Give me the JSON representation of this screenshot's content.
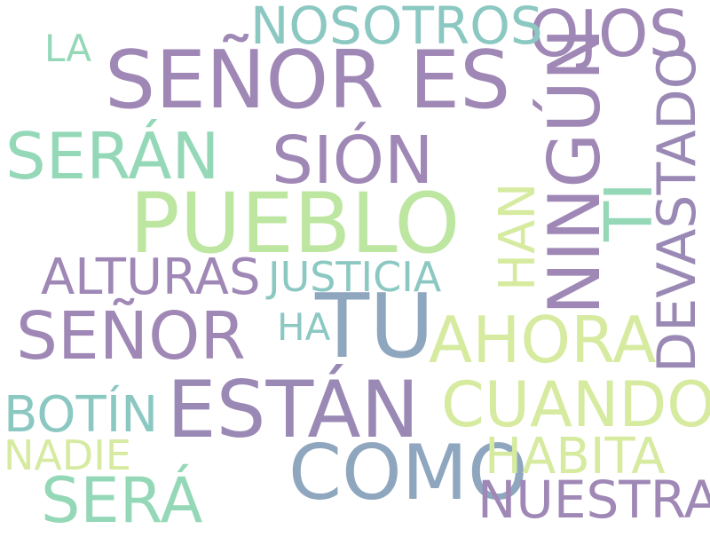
{
  "colors": {
    "purple": "#a088b6",
    "mauve": "#9a89b5",
    "slate": "#8fa6bf",
    "teal": "#8cc8c2",
    "mint": "#95d8b8",
    "green": "#bde6a1",
    "lime": "#d6eba0"
  },
  "words": [
    {
      "text": "SEÑOR ES",
      "color": "purple"
    },
    {
      "text": "PUEBLO",
      "color": "green"
    },
    {
      "text": "TU",
      "color": "slate"
    },
    {
      "text": "ESTÁN",
      "color": "mauve"
    },
    {
      "text": "COMO",
      "color": "slate"
    },
    {
      "text": "NINGÚN",
      "color": "purple"
    },
    {
      "text": "SIÓN",
      "color": "purple"
    },
    {
      "text": "SEÑOR",
      "color": "purple"
    },
    {
      "text": "SERÁN",
      "color": "mint"
    },
    {
      "text": "OJOS",
      "color": "purple"
    },
    {
      "text": "NOSOTROS",
      "color": "teal"
    },
    {
      "text": "AHORA",
      "color": "lime"
    },
    {
      "text": "CUANDO",
      "color": "lime"
    },
    {
      "text": "SERÁ",
      "color": "mint"
    },
    {
      "text": "DEVASTADO",
      "color": "mauve"
    },
    {
      "text": "TI",
      "color": "mint"
    },
    {
      "text": "HAN",
      "color": "lime"
    },
    {
      "text": "ALTURAS",
      "color": "purple"
    },
    {
      "text": "JUSTICIA",
      "color": "teal"
    },
    {
      "text": "BOTÍN",
      "color": "teal"
    },
    {
      "text": "HABITA",
      "color": "lime"
    },
    {
      "text": "NUESTRA",
      "color": "purple"
    },
    {
      "text": "NADIE",
      "color": "lime"
    },
    {
      "text": "HA",
      "color": "teal"
    },
    {
      "text": "LA",
      "color": "mint"
    }
  ]
}
